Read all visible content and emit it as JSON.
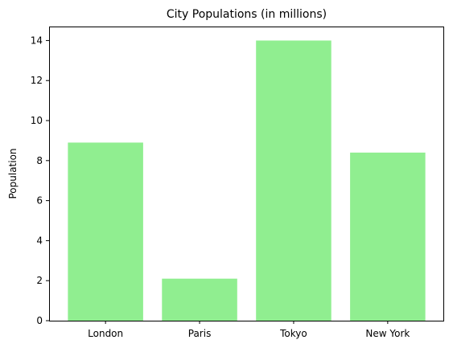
{
  "chart_data": {
    "type": "bar",
    "title": "City Populations (in millions)",
    "xlabel": "",
    "ylabel": "Population",
    "categories": [
      "London",
      "Paris",
      "Tokyo",
      "New York"
    ],
    "values": [
      8.9,
      2.1,
      14.0,
      8.4
    ],
    "ylim": [
      0,
      14.7
    ],
    "yticks": [
      0,
      2,
      4,
      6,
      8,
      10,
      12,
      14
    ],
    "grid": false,
    "bar_color": "#90ee90",
    "axis_color": "#000000"
  }
}
